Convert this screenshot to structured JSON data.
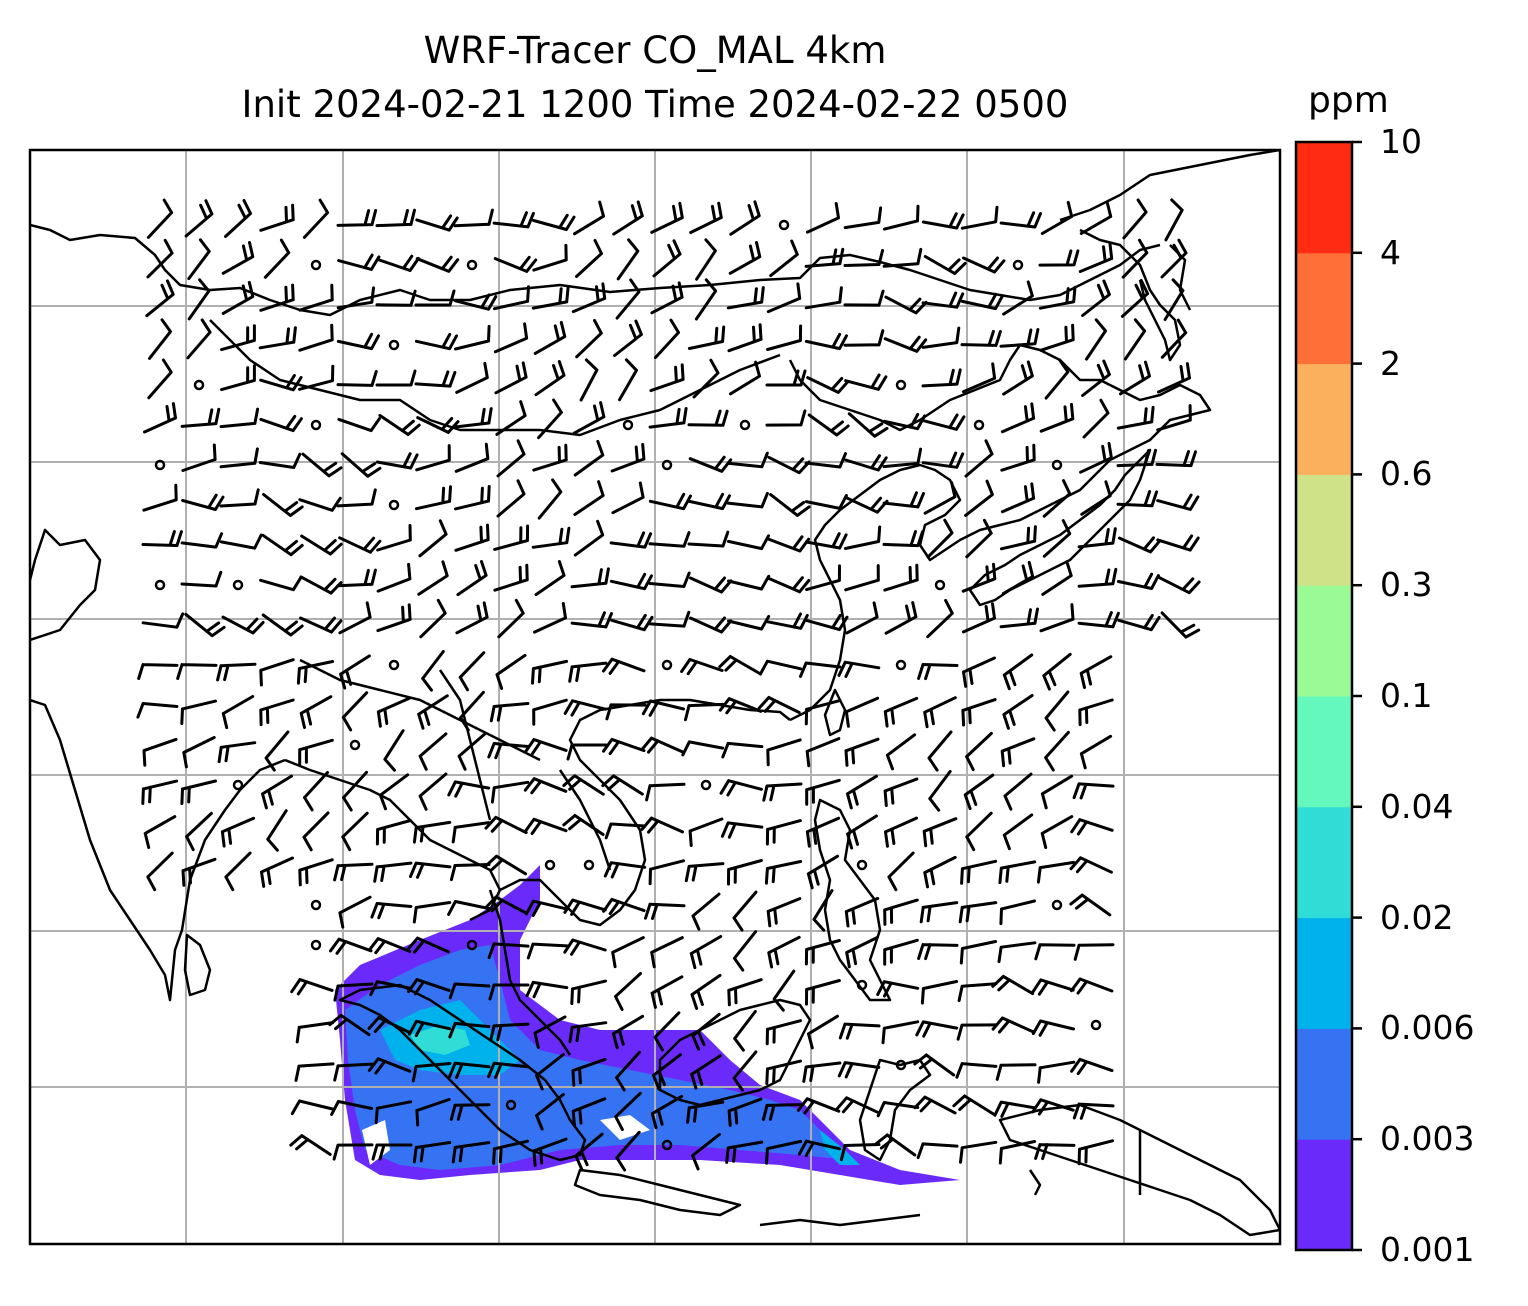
{
  "title": {
    "line1": "WRF-Tracer CO_MAL 4km",
    "line2": "Init 2024-02-21 1200 Time 2024-02-22 0500"
  },
  "colorbar": {
    "unit": "ppm",
    "ticks": [
      "0.001",
      "0.003",
      "0.006",
      "0.02",
      "0.04",
      "0.1",
      "0.3",
      "0.6",
      "2",
      "4",
      "10"
    ],
    "colors": [
      "#6a2bfa",
      "#3673f2",
      "#00b2ec",
      "#2fdcd6",
      "#64f8bc",
      "#9afb96",
      "#cfe287",
      "#fbb05e",
      "#ff7038",
      "#ff2b13"
    ]
  },
  "map": {
    "gridlines": true,
    "field_colors": {
      "low": "#6a2bfa",
      "mid": "#3673f2",
      "high": "#00b2ec",
      "peak": "#2fdcd6"
    }
  }
}
